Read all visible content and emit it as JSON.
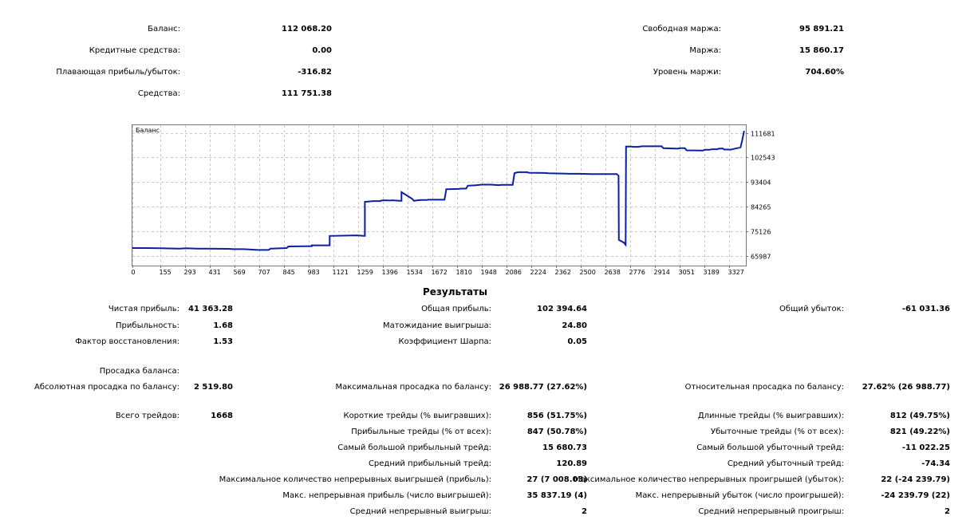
{
  "account": {
    "balance_label": "Баланс:",
    "balance": "112 068.20",
    "credit_label": "Кредитные средства:",
    "credit": "0.00",
    "floating_label": "Плавающая прибыль/убыток:",
    "floating": "-316.82",
    "equity_label": "Средства:",
    "equity": "111 751.38",
    "free_margin_label": "Свободная маржа:",
    "free_margin": "95 891.21",
    "margin_label": "Маржа:",
    "margin": "15 860.17",
    "margin_level_label": "Уровень маржи:",
    "margin_level": "704.60%"
  },
  "chart_data": {
    "type": "line",
    "legend": "Баланс",
    "x_ticks": [
      "0",
      "155",
      "293",
      "431",
      "569",
      "707",
      "845",
      "983",
      "1121",
      "1259",
      "1396",
      "1534",
      "1672",
      "1810",
      "1948",
      "2086",
      "2224",
      "2362",
      "2500",
      "2638",
      "2776",
      "2914",
      "3051",
      "3189",
      "3327"
    ],
    "y_ticks": [
      "111681",
      "102543",
      "93404",
      "84265",
      "75126",
      "65987"
    ],
    "xlim": [
      0,
      3420
    ],
    "ylim": [
      62500,
      114500
    ],
    "grid": true,
    "line_color": "#0a1fa3",
    "series": [
      {
        "x": [
          0,
          80,
          160,
          260,
          300,
          360,
          410,
          540,
          560,
          620,
          700,
          760,
          770,
          860,
          870,
          1000,
          1000,
          1100,
          1100,
          1250,
          1290,
          1296,
          1296,
          1330,
          1340,
          1380,
          1390,
          1400,
          1440,
          1450,
          1490,
          1500,
          1500,
          1560,
          1570,
          1590,
          1610,
          1640,
          1650,
          1740,
          1750,
          1820,
          1830,
          1860,
          1870,
          1895,
          1905,
          1935,
          1945,
          2000,
          2040,
          2060,
          2080,
          2120,
          2130,
          2150,
          2200,
          2210,
          2300,
          2320,
          2400,
          2440,
          2480,
          2490,
          2560,
          2570,
          2700,
          2710,
          2712,
          2740,
          2750,
          2752,
          2782,
          2790,
          2820,
          2830,
          2840,
          2950,
          2960,
          3040,
          3050,
          3080,
          3090,
          3180,
          3190,
          3220,
          3230,
          3260,
          3270,
          3290,
          3300,
          3340,
          3350,
          3390,
          3400,
          3410
        ],
        "y": [
          69000,
          69000,
          68900,
          68800,
          68900,
          68800,
          68800,
          68700,
          68600,
          68600,
          68300,
          68300,
          68800,
          69000,
          69600,
          69700,
          70000,
          70000,
          73500,
          73700,
          73500,
          73500,
          86100,
          86300,
          86400,
          86400,
          86600,
          86700,
          86600,
          86700,
          86500,
          86500,
          89700,
          87200,
          86500,
          86700,
          86800,
          86800,
          86900,
          86900,
          90800,
          90900,
          91000,
          91000,
          92100,
          92200,
          92200,
          92400,
          92500,
          92500,
          92300,
          92400,
          92400,
          92400,
          96700,
          97100,
          97100,
          96900,
          96800,
          96700,
          96600,
          96500,
          96500,
          96500,
          96400,
          96400,
          96400,
          95800,
          72000,
          71000,
          70200,
          106600,
          106600,
          106500,
          106500,
          106600,
          106700,
          106700,
          106000,
          105800,
          106000,
          106000,
          105200,
          105100,
          105400,
          105400,
          105600,
          105600,
          105800,
          105900,
          105500,
          105500,
          105700,
          106300,
          109000,
          112400
        ]
      }
    ]
  },
  "results": {
    "title": "Результаты",
    "net_profit_label": "Чистая прибыль:",
    "net_profit": "41 363.28",
    "profitability_label": "Прибыльность:",
    "profitability": "1.68",
    "recovery_label": "Фактор восстановления:",
    "recovery": "1.53",
    "gross_profit_label": "Общая прибыль:",
    "gross_profit": "102 394.64",
    "expected_payoff_label": "Матожидание выигрыша:",
    "expected_payoff": "24.80",
    "sharpe_label": "Коэффициент Шарпа:",
    "sharpe": "0.05",
    "gross_loss_label": "Общий убыток:",
    "gross_loss": "-61 031.36",
    "drawdown_label": "Просадка баланса:",
    "abs_dd_label": "Абсолютная просадка по балансу:",
    "abs_dd": "2 519.80",
    "max_dd_label": "Максимальная просадка по балансу:",
    "max_dd": "26 988.77 (27.62%)",
    "rel_dd_label": "Относительная просадка по балансу:",
    "rel_dd": "27.62% (26 988.77)",
    "total_trades_label": "Всего трейдов:",
    "total_trades": "1668",
    "short_label": "Короткие трейды (% выигравших):",
    "short": "856 (51.75%)",
    "profit_trades_label": "Прибыльные трейды (% от всех):",
    "profit_trades": "847 (50.78%)",
    "largest_profit_label": "Самый большой прибыльный трейд:",
    "largest_profit": "15 680.73",
    "avg_profit_label": "Средний прибыльный трейд:",
    "avg_profit": "120.89",
    "max_consec_wins_label": "Максимальное количество непрерывных выигрышей (прибыль):",
    "max_consec_wins": "27 (7 008.03)",
    "max_consec_profit_label": "Макс. непрерывная прибыль (число выигрышей):",
    "max_consec_profit": "35 837.19 (4)",
    "avg_consec_wins_label": "Средний непрерывный выигрыш:",
    "avg_consec_wins": "2",
    "long_label": "Длинные трейды (% выигравших):",
    "long": "812 (49.75%)",
    "loss_trades_label": "Убыточные трейды (% от всех):",
    "loss_trades": "821 (49.22%)",
    "largest_loss_label": "Самый большой убыточный трейд:",
    "largest_loss": "-11 022.25",
    "avg_loss_label": "Средний убыточный трейд:",
    "avg_loss": "-74.34",
    "max_consec_losses_label": "Максимальное количество непрерывных проигрышей (убыток):",
    "max_consec_losses": "22 (-24 239.79)",
    "max_consec_loss_label": "Макс. непрерывный убыток (число проигрышей):",
    "max_consec_loss": "-24 239.79 (22)",
    "avg_consec_losses_label": "Средний непрерывный проигрыш:",
    "avg_consec_losses": "2"
  }
}
